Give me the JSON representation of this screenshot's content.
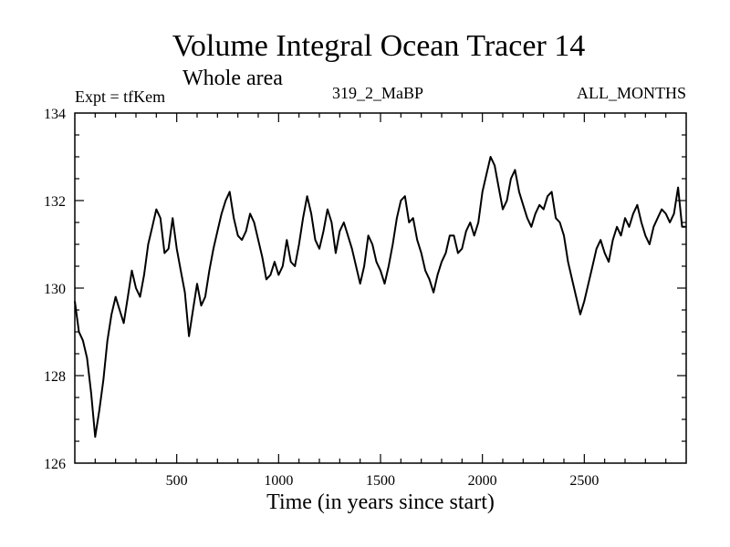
{
  "chart_data": {
    "type": "line",
    "title": "Volume Integral Ocean Tracer 14",
    "subtitle": "Whole area",
    "left_label": "Expt = tfKem",
    "center_label": "319_2_MaBP",
    "right_label": "ALL_MONTHS",
    "xlabel": "Time (in years since start)",
    "ylabel": "",
    "xlim": [
      0,
      3000
    ],
    "ylim": [
      126,
      134
    ],
    "x_ticks": [
      500,
      1000,
      1500,
      2000,
      2500
    ],
    "y_ticks": [
      126,
      128,
      130,
      132,
      134
    ],
    "grid": false,
    "series": [
      {
        "x": [
          0,
          20,
          40,
          60,
          80,
          100,
          120,
          140,
          160,
          180,
          200,
          220,
          240,
          260,
          280,
          300,
          320,
          340,
          360,
          380,
          400,
          420,
          440,
          460,
          480,
          500,
          520,
          540,
          560,
          580,
          600,
          620,
          640,
          660,
          680,
          700,
          720,
          740,
          760,
          780,
          800,
          820,
          840,
          860,
          880,
          900,
          920,
          940,
          960,
          980,
          1000,
          1020,
          1040,
          1060,
          1080,
          1100,
          1120,
          1140,
          1160,
          1180,
          1200,
          1220,
          1240,
          1260,
          1280,
          1300,
          1320,
          1340,
          1360,
          1380,
          1400,
          1420,
          1440,
          1460,
          1480,
          1500,
          1520,
          1540,
          1560,
          1580,
          1600,
          1620,
          1640,
          1660,
          1680,
          1700,
          1720,
          1740,
          1760,
          1780,
          1800,
          1820,
          1840,
          1860,
          1880,
          1900,
          1920,
          1940,
          1960,
          1980,
          2000,
          2020,
          2040,
          2060,
          2080,
          2100,
          2120,
          2140,
          2160,
          2180,
          2200,
          2220,
          2240,
          2260,
          2280,
          2300,
          2320,
          2340,
          2360,
          2380,
          2400,
          2420,
          2440,
          2460,
          2480,
          2500,
          2520,
          2540,
          2560,
          2580,
          2600,
          2620,
          2640,
          2660,
          2680,
          2700,
          2720,
          2740,
          2760,
          2780,
          2800,
          2820,
          2840,
          2860,
          2880,
          2900,
          2920,
          2940,
          2960,
          2980,
          3000
        ],
        "y": [
          129.7,
          129.0,
          128.8,
          128.4,
          127.6,
          126.6,
          127.2,
          127.9,
          128.8,
          129.4,
          129.8,
          129.5,
          129.2,
          129.8,
          130.4,
          130.0,
          129.8,
          130.3,
          131.0,
          131.4,
          131.8,
          131.6,
          130.8,
          130.9,
          131.6,
          130.9,
          130.4,
          129.9,
          128.9,
          129.5,
          130.1,
          129.6,
          129.8,
          130.4,
          130.9,
          131.3,
          131.7,
          132.0,
          132.2,
          131.6,
          131.2,
          131.1,
          131.3,
          131.7,
          131.5,
          131.1,
          130.7,
          130.2,
          130.3,
          130.6,
          130.3,
          130.5,
          131.1,
          130.6,
          130.5,
          131.0,
          131.6,
          132.1,
          131.7,
          131.1,
          130.9,
          131.3,
          131.8,
          131.5,
          130.8,
          131.3,
          131.5,
          131.2,
          130.9,
          130.5,
          130.1,
          130.5,
          131.2,
          131.0,
          130.6,
          130.4,
          130.1,
          130.5,
          131.0,
          131.6,
          132.0,
          132.1,
          131.5,
          131.6,
          131.1,
          130.8,
          130.4,
          130.2,
          129.9,
          130.3,
          130.6,
          130.8,
          131.2,
          131.2,
          130.8,
          130.9,
          131.3,
          131.5,
          131.2,
          131.5,
          132.2,
          132.6,
          133.0,
          132.8,
          132.3,
          131.8,
          132.0,
          132.5,
          132.7,
          132.2,
          131.9,
          131.6,
          131.4,
          131.7,
          131.9,
          131.8,
          132.1,
          132.2,
          131.6,
          131.5,
          131.2,
          130.6,
          130.2,
          129.8,
          129.4,
          129.7,
          130.1,
          130.5,
          130.9,
          131.1,
          130.8,
          130.6,
          131.1,
          131.4,
          131.2,
          131.6,
          131.4,
          131.7,
          131.9,
          131.5,
          131.2,
          131.0,
          131.4,
          131.6,
          131.8,
          131.7,
          131.5,
          131.7,
          132.3,
          131.4,
          131.4
        ]
      }
    ]
  }
}
